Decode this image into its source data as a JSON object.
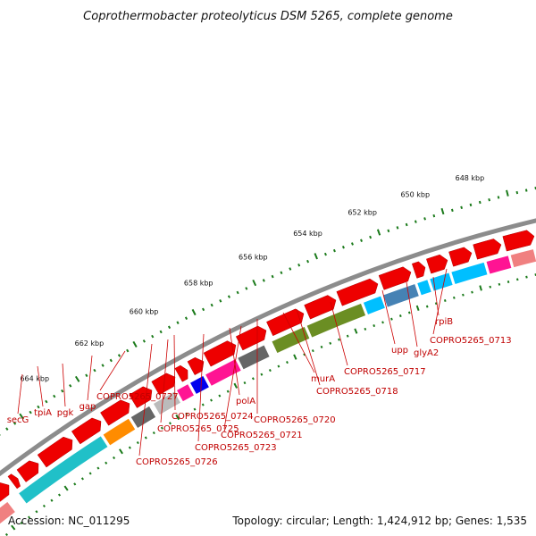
{
  "title": "Coprothermobacter proteolyticus DSM 5265, complete genome",
  "ruler": {
    "labels": [
      "648 kbp",
      "650 kbp",
      "652 kbp",
      "654 kbp",
      "656 kbp",
      "658 kbp",
      "660 kbp",
      "662 kbp",
      "664 kbp"
    ]
  },
  "colors": {
    "backbone": "#8c8c8c",
    "ruler_ticks": "#1a7a1a",
    "cds_arrow": "#ee0000",
    "label_text": "#cc0000",
    "cog_palette": [
      "#f08080",
      "#20c0c8",
      "#ff8c00",
      "#666666",
      "#bbbbbb",
      "#ff1493",
      "#0000ee",
      "#6b8e23",
      "#00bfff",
      "#4682b4"
    ]
  },
  "gene_labels": [
    "secG",
    "tpiA",
    "pgk",
    "gap",
    "COPRO5265_0727",
    "COPRO5265_0726",
    "COPRO5265_0725",
    "COPRO5265_0724",
    "COPRO5265_0723",
    "polA",
    "COPRO5265_0721",
    "COPRO5265_0720",
    "murA",
    "COPRO5265_0718",
    "COPRO5265_0717",
    "upp",
    "glyA2",
    "rpiB",
    "COPRO5265_0713"
  ],
  "footer": {
    "accession": "Accession: NC_011295",
    "summary": "Topology: circular; Length: 1,424,912 bp; Genes: 1,535"
  }
}
